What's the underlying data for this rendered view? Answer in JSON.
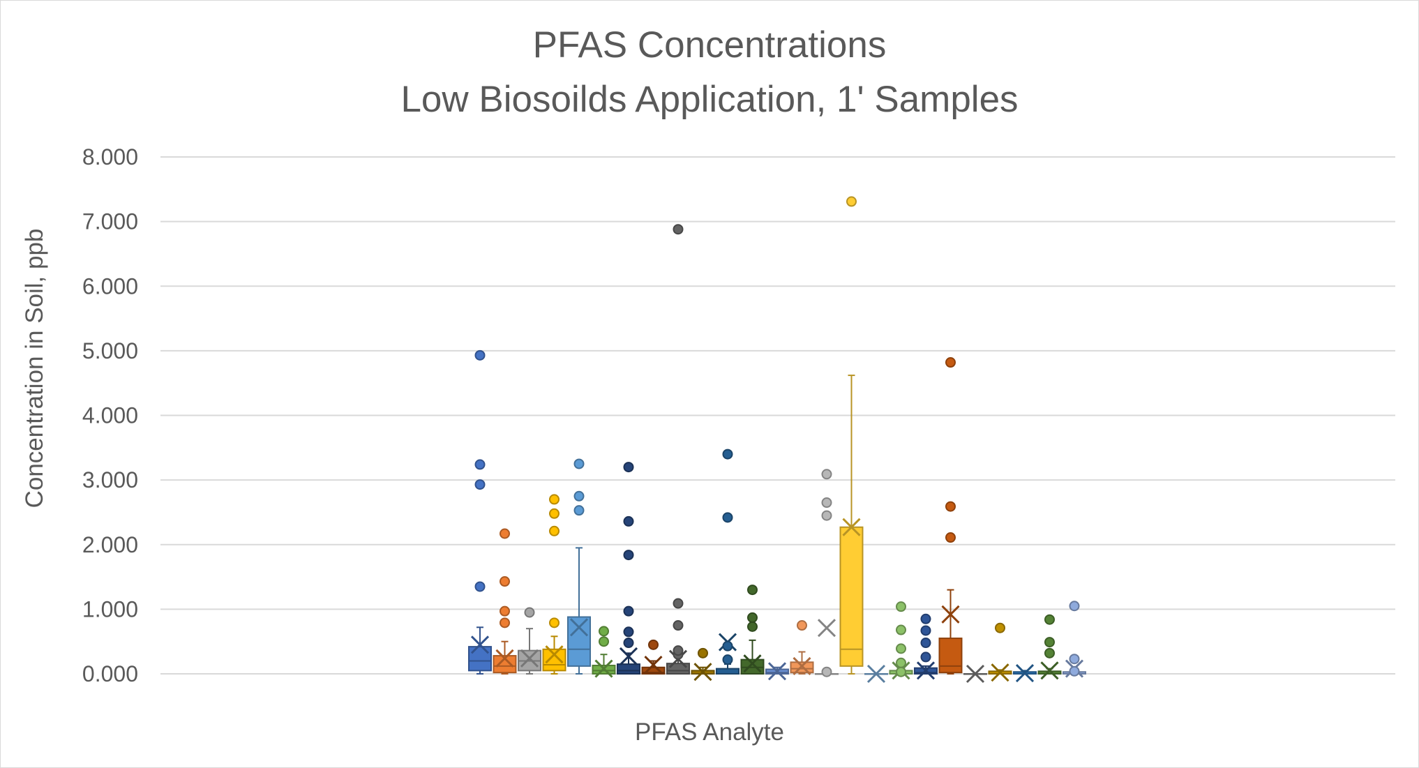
{
  "chart_data": {
    "type": "box",
    "title": [
      "PFAS Concentrations",
      "Low Biosoilds Application, 1' Samples"
    ],
    "xlabel": "PFAS Analyte",
    "ylabel": "Concentration in Soil, ppb",
    "ylim": [
      0,
      8
    ],
    "yticks": [
      "0.000",
      "1.000",
      "2.000",
      "3.000",
      "4.000",
      "5.000",
      "6.000",
      "7.000",
      "8.000"
    ],
    "grid": true,
    "legend": "none",
    "series": [
      {
        "color": "#4472C4",
        "min": 0.0,
        "q1": 0.05,
        "median": 0.2,
        "q3": 0.42,
        "max": 0.72,
        "mean": 0.45,
        "outliers": [
          1.35,
          2.93,
          3.24,
          4.93
        ]
      },
      {
        "color": "#ED7D31",
        "min": 0.0,
        "q1": 0.02,
        "median": 0.12,
        "q3": 0.28,
        "max": 0.5,
        "mean": 0.24,
        "outliers": [
          0.79,
          0.97,
          1.43,
          2.17
        ]
      },
      {
        "color": "#A5A5A5",
        "min": 0.0,
        "q1": 0.05,
        "median": 0.2,
        "q3": 0.36,
        "max": 0.7,
        "mean": 0.24,
        "outliers": [
          0.95
        ]
      },
      {
        "color": "#FFC000",
        "min": 0.0,
        "q1": 0.05,
        "median": 0.14,
        "q3": 0.38,
        "max": 0.58,
        "mean": 0.3,
        "outliers": [
          0.79,
          2.21,
          2.48,
          2.7
        ]
      },
      {
        "color": "#5B9BD5",
        "min": 0.0,
        "q1": 0.12,
        "median": 0.38,
        "q3": 0.88,
        "max": 1.95,
        "mean": 0.72,
        "outliers": [
          2.53,
          2.75,
          3.25
        ]
      },
      {
        "color": "#70AD47",
        "min": 0.0,
        "q1": 0.0,
        "median": 0.05,
        "q3": 0.13,
        "max": 0.3,
        "mean": 0.08,
        "outliers": [
          0.5,
          0.66
        ]
      },
      {
        "color": "#264478",
        "min": 0.0,
        "q1": 0.0,
        "median": 0.05,
        "q3": 0.15,
        "max": 0.32,
        "mean": 0.27,
        "outliers": [
          0.48,
          0.65,
          0.97,
          1.84,
          2.36,
          3.2
        ]
      },
      {
        "color": "#9E480E",
        "min": 0.0,
        "q1": 0.0,
        "median": 0.02,
        "q3": 0.1,
        "max": 0.2,
        "mean": 0.14,
        "outliers": [
          0.45
        ]
      },
      {
        "color": "#636363",
        "min": 0.0,
        "q1": 0.0,
        "median": 0.05,
        "q3": 0.16,
        "max": 0.28,
        "mean": 0.23,
        "outliers": [
          0.3,
          0.36,
          0.75,
          1.09,
          6.88
        ]
      },
      {
        "color": "#997300",
        "min": 0.0,
        "q1": 0.0,
        "median": 0.0,
        "q3": 0.05,
        "max": 0.1,
        "mean": 0.03,
        "outliers": [
          0.32
        ]
      },
      {
        "color": "#255E91",
        "min": 0.0,
        "q1": 0.0,
        "median": 0.0,
        "q3": 0.08,
        "max": 0.15,
        "mean": 0.49,
        "outliers": [
          0.22,
          0.43,
          2.42,
          3.4
        ]
      },
      {
        "color": "#43682B",
        "min": 0.0,
        "q1": 0.0,
        "median": 0.1,
        "q3": 0.22,
        "max": 0.52,
        "mean": 0.16,
        "outliers": [
          0.73,
          0.87,
          1.3
        ]
      },
      {
        "color": "#698ED0",
        "min": 0.0,
        "q1": 0.0,
        "median": 0.02,
        "q3": 0.07,
        "max": 0.1,
        "mean": 0.04,
        "outliers": []
      },
      {
        "color": "#F1975A",
        "min": 0.0,
        "q1": 0.02,
        "median": 0.08,
        "q3": 0.18,
        "max": 0.34,
        "mean": 0.12,
        "outliers": [
          0.75
        ]
      },
      {
        "color": "#B7B7B7",
        "min": 0.0,
        "q1": 0.0,
        "median": 0.0,
        "q3": 0.0,
        "max": 0.0,
        "mean": 0.71,
        "outliers": [
          0.03,
          2.45,
          2.65,
          3.09
        ]
      },
      {
        "color": "#FFCD33",
        "min": 0.0,
        "q1": 0.12,
        "median": 0.38,
        "q3": 2.27,
        "max": 4.62,
        "mean": 2.27,
        "outliers": [
          7.31
        ]
      },
      {
        "color": "#7CAFDD",
        "min": 0.0,
        "q1": 0.0,
        "median": 0.0,
        "q3": 0.0,
        "max": 0.0,
        "mean": 0.0,
        "outliers": []
      },
      {
        "color": "#8CC168",
        "min": 0.0,
        "q1": 0.0,
        "median": 0.0,
        "q3": 0.05,
        "max": 0.1,
        "mean": 0.05,
        "outliers": [
          0.03,
          0.17,
          0.39,
          0.68,
          1.04
        ]
      },
      {
        "color": "#2F5597",
        "min": 0.0,
        "q1": 0.0,
        "median": 0.02,
        "q3": 0.09,
        "max": 0.12,
        "mean": 0.05,
        "outliers": [
          0.26,
          0.48,
          0.67,
          0.85
        ]
      },
      {
        "color": "#C55A11",
        "min": 0.0,
        "q1": 0.02,
        "median": 0.12,
        "q3": 0.55,
        "max": 1.3,
        "mean": 0.92,
        "outliers": [
          2.11,
          2.59,
          4.82
        ]
      },
      {
        "color": "#7F7F7F",
        "min": 0.0,
        "q1": 0.0,
        "median": 0.0,
        "q3": 0.0,
        "max": 0.0,
        "mean": 0.0,
        "outliers": []
      },
      {
        "color": "#BF9000",
        "min": 0.0,
        "q1": 0.0,
        "median": 0.0,
        "q3": 0.04,
        "max": 0.06,
        "mean": 0.02,
        "outliers": [
          0.71
        ]
      },
      {
        "color": "#2E75B6",
        "min": 0.0,
        "q1": 0.0,
        "median": 0.0,
        "q3": 0.03,
        "max": 0.05,
        "mean": 0.01,
        "outliers": []
      },
      {
        "color": "#548235",
        "min": 0.0,
        "q1": 0.0,
        "median": 0.0,
        "q3": 0.04,
        "max": 0.08,
        "mean": 0.05,
        "outliers": [
          0.32,
          0.49,
          0.84
        ]
      },
      {
        "color": "#8FAADC",
        "min": 0.0,
        "q1": 0.0,
        "median": 0.0,
        "q3": 0.03,
        "max": 0.06,
        "mean": 0.08,
        "outliers": [
          0.04,
          0.23,
          1.05
        ]
      }
    ]
  }
}
